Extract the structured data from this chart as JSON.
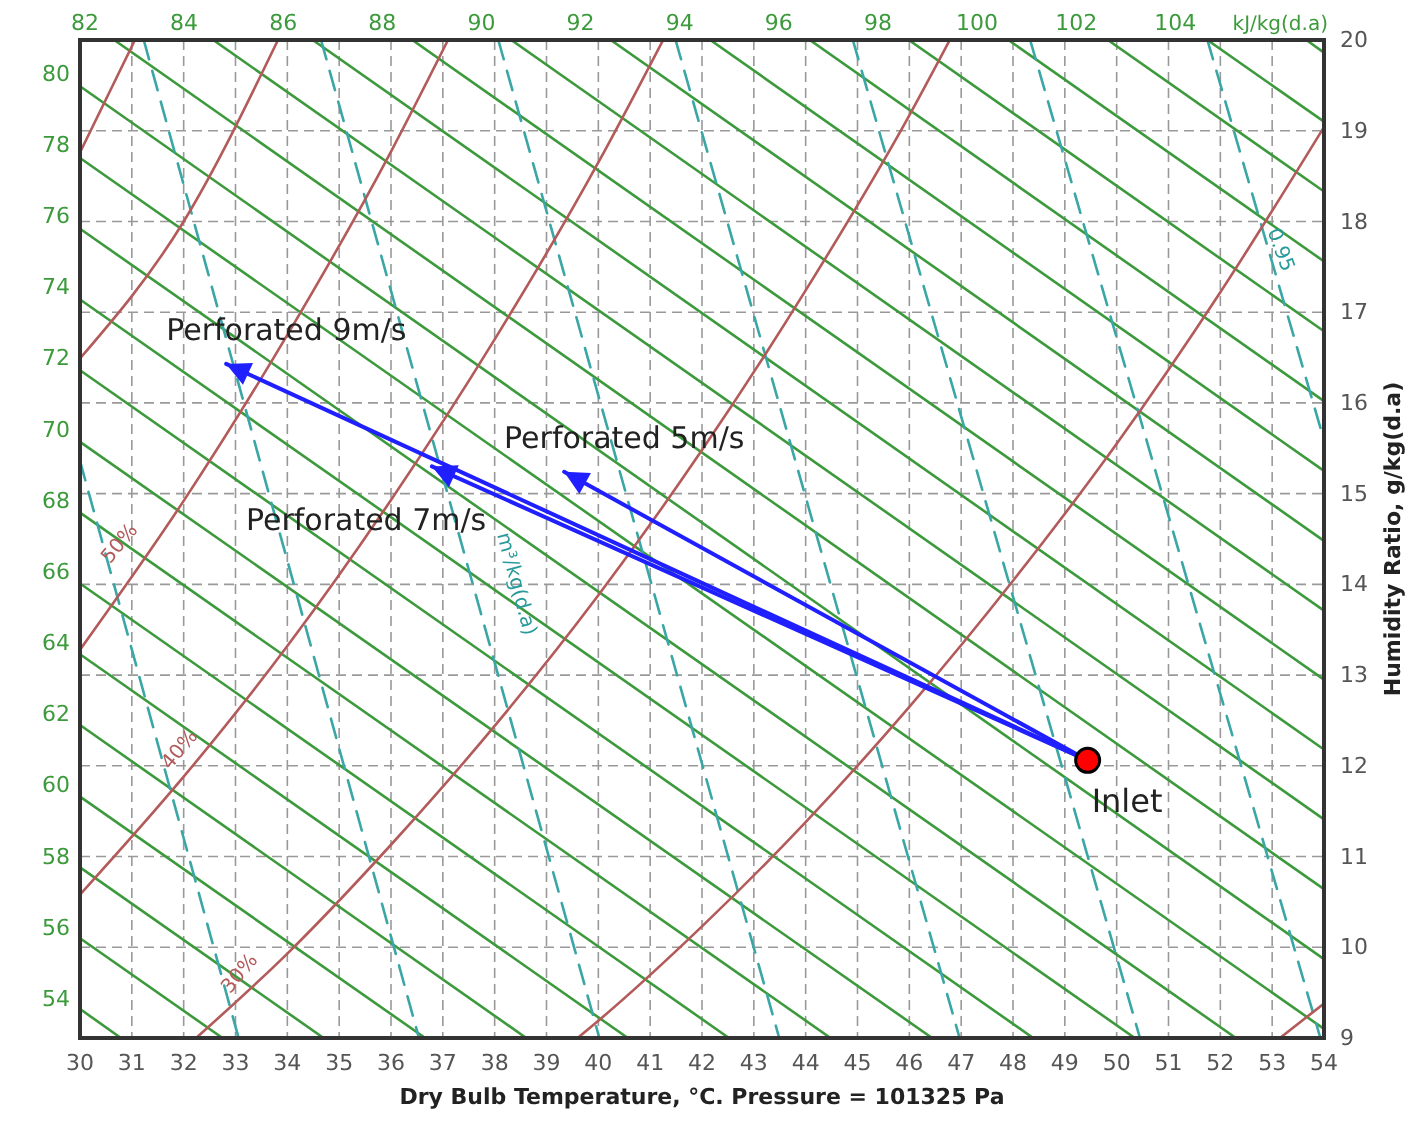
{
  "chart_data": {
    "type": "line",
    "xlabel": "Dry Bulb Temperature, °C. Pressure = 101325 Pa",
    "ylabel": "Humidity Ratio, g/kg(d.a)",
    "x2label": "kJ/kg(d.a)",
    "xlim": [
      30,
      54
    ],
    "xticks": [
      30,
      31,
      32,
      33,
      34,
      35,
      36,
      37,
      38,
      39,
      40,
      41,
      42,
      43,
      44,
      45,
      46,
      47,
      48,
      49,
      50,
      51,
      52,
      53,
      54
    ],
    "ylim": [
      9,
      20
    ],
    "yticks": [
      9,
      10,
      11,
      12,
      13,
      14,
      15,
      16,
      17,
      18,
      19,
      20
    ],
    "y2lim": [
      52.9,
      80.95
    ],
    "y2ticks": [
      54,
      56,
      58,
      60,
      62,
      64,
      66,
      68,
      70,
      72,
      74,
      76,
      78,
      80
    ],
    "x2lim": [
      81.9,
      107
    ],
    "x2ticks": [
      82,
      84,
      86,
      88,
      90,
      92,
      94,
      96,
      98,
      100,
      102,
      104
    ],
    "grid": true,
    "series": [
      {
        "x": [
          30,
          30.79
        ],
        "values": [
          9.32,
          9
        ],
        "color": "#3c9a3c"
      },
      {
        "x": [
          30,
          32.75
        ],
        "values": [
          10.1,
          9
        ],
        "color": "#3c9a3c"
      },
      {
        "x": [
          30,
          34.7
        ],
        "values": [
          10.88,
          9
        ],
        "color": "#3c9a3c"
      },
      {
        "x": [
          30,
          36.66
        ],
        "values": [
          11.66,
          9
        ],
        "color": "#3c9a3c"
      },
      {
        "x": [
          30,
          38.61
        ],
        "values": [
          12.45,
          9
        ],
        "color": "#3c9a3c"
      },
      {
        "x": [
          30,
          40.57
        ],
        "values": [
          13.23,
          9
        ],
        "color": "#3c9a3c"
      },
      {
        "x": [
          30,
          42.52
        ],
        "values": [
          14.01,
          9
        ],
        "color": "#3c9a3c"
      },
      {
        "x": [
          30,
          44.48
        ],
        "values": [
          14.79,
          9
        ],
        "color": "#3c9a3c"
      },
      {
        "x": [
          30,
          46.44
        ],
        "values": [
          15.57,
          9
        ],
        "color": "#3c9a3c"
      },
      {
        "x": [
          30,
          48.39
        ],
        "values": [
          16.36,
          9
        ],
        "color": "#3c9a3c"
      },
      {
        "x": [
          30,
          50.35
        ],
        "values": [
          17.14,
          9
        ],
        "color": "#3c9a3c"
      },
      {
        "x": [
          30,
          52.3
        ],
        "values": [
          17.92,
          9
        ],
        "color": "#3c9a3c"
      },
      {
        "x": [
          30,
          54
        ],
        "values": [
          18.7,
          9.1
        ],
        "color": "#3c9a3c"
      },
      {
        "x": [
          30,
          54
        ],
        "values": [
          19.49,
          9.87
        ],
        "color": "#3c9a3c"
      },
      {
        "x": [
          30.66,
          54
        ],
        "values": [
          20,
          10.64
        ],
        "color": "#3c9a3c"
      },
      {
        "x": [
          32.57,
          54
        ],
        "values": [
          20,
          11.41
        ],
        "color": "#3c9a3c"
      },
      {
        "x": [
          34.49,
          54
        ],
        "values": [
          20,
          12.18
        ],
        "color": "#3c9a3c"
      },
      {
        "x": [
          36.41,
          54
        ],
        "values": [
          20,
          12.95
        ],
        "color": "#3c9a3c"
      },
      {
        "x": [
          38.32,
          54
        ],
        "values": [
          20,
          13.71
        ],
        "color": "#3c9a3c"
      },
      {
        "x": [
          40.24,
          54
        ],
        "values": [
          20,
          14.48
        ],
        "color": "#3c9a3c"
      },
      {
        "x": [
          42.16,
          54
        ],
        "values": [
          20,
          15.25
        ],
        "color": "#3c9a3c"
      },
      {
        "x": [
          44.08,
          54
        ],
        "values": [
          20,
          16.02
        ],
        "color": "#3c9a3c"
      },
      {
        "x": [
          45.99,
          54
        ],
        "values": [
          20,
          16.79
        ],
        "color": "#3c9a3c"
      },
      {
        "x": [
          47.91,
          54
        ],
        "values": [
          20,
          17.56
        ],
        "color": "#3c9a3c"
      },
      {
        "x": [
          49.83,
          54
        ],
        "values": [
          20,
          18.33
        ],
        "color": "#3c9a3c"
      },
      {
        "x": [
          51.75,
          54
        ],
        "values": [
          20,
          19.1
        ],
        "color": "#3c9a3c"
      },
      {
        "x": [
          53.66,
          54
        ],
        "values": [
          20,
          19.86
        ],
        "color": "#3c9a3c"
      },
      {
        "x": [
          30,
          33.06
        ],
        "values": [
          15.36,
          9
        ],
        "color": "#3aa6a6",
        "line_style": "dashed"
      },
      {
        "x": [
          31.23,
          36.54
        ],
        "values": [
          20,
          9
        ],
        "color": "#3aa6a6",
        "line_style": "dashed"
      },
      {
        "x": [
          34.65,
          40.02
        ],
        "values": [
          20,
          9
        ],
        "color": "#3aa6a6",
        "line_style": "dashed"
      },
      {
        "x": [
          38.07,
          43.49
        ],
        "values": [
          20,
          9
        ],
        "color": "#3aa6a6",
        "line_style": "dashed"
      },
      {
        "x": [
          41.49,
          46.97
        ],
        "values": [
          20,
          9
        ],
        "color": "#3aa6a6",
        "line_style": "dashed"
      },
      {
        "x": [
          44.91,
          50.45
        ],
        "values": [
          20,
          9
        ],
        "color": "#3aa6a6",
        "line_style": "dashed"
      },
      {
        "x": [
          48.33,
          53.93
        ],
        "values": [
          20,
          9
        ],
        "color": "#3aa6a6",
        "line_style": "dashed"
      },
      {
        "x": [
          51.75,
          54
        ],
        "values": [
          20,
          15.59
        ],
        "color": "#3aa6a6",
        "line_style": "dashed"
      },
      {
        "x": [
          30,
          31.06
        ],
        "values": [
          18.76,
          20
        ],
        "color": "#b35a5a"
      },
      {
        "x": [
          30,
          32,
          33.82
        ],
        "values": [
          16.49,
          18,
          20
        ],
        "color": "#b35a5a"
      },
      {
        "x": [
          30,
          32,
          34,
          36,
          37.1
        ],
        "values": [
          13.28,
          14.92,
          16.75,
          18.77,
          20
        ],
        "color": "#b35a5a"
      },
      {
        "x": [
          30,
          32,
          34,
          36,
          38,
          40,
          41.25
        ],
        "values": [
          10.58,
          11.88,
          13.32,
          14.93,
          16.7,
          18.65,
          20
        ],
        "color": "#b35a5a"
      },
      {
        "x": [
          32.24,
          34,
          36,
          38,
          40,
          42,
          44,
          46,
          46.78
        ],
        "values": [
          9,
          9.93,
          11.13,
          12.44,
          13.88,
          15.48,
          17.24,
          19.17,
          20
        ],
        "color": "#b35a5a"
      },
      {
        "x": [
          39.6,
          40,
          42,
          44,
          46,
          48,
          50,
          52,
          54
        ],
        "values": [
          9,
          9.19,
          10.23,
          11.38,
          12.65,
          14.04,
          15.55,
          17.22,
          19.04
        ],
        "color": "#b35a5a"
      },
      {
        "x": [
          53.15,
          54
        ],
        "values": [
          9,
          9.38
        ],
        "color": "#b35a5a"
      },
      {
        "name": "Perforated 9m/s",
        "x": [
          49.44,
          32.82
        ],
        "values": [
          12.06,
          16.43
        ],
        "color": "#1f1fff"
      },
      {
        "name": "Perforated 5m/s",
        "x": [
          49.44,
          39.34
        ],
        "values": [
          12.06,
          15.24
        ],
        "color": "#1f1fff"
      },
      {
        "name": "Perforated 7m/s",
        "x": [
          49.44,
          36.79
        ],
        "values": [
          12.06,
          15.3
        ],
        "color": "#1f1fff"
      },
      {
        "type": "scatter",
        "name": "Inlet",
        "x": [
          49.44
        ],
        "values": [
          12.06
        ],
        "color": "#ff0000",
        "marker": "circle"
      }
    ],
    "annotations": [
      "30%",
      "40%",
      "50%",
      "0.95",
      "m³/kg(d.a)"
    ]
  }
}
